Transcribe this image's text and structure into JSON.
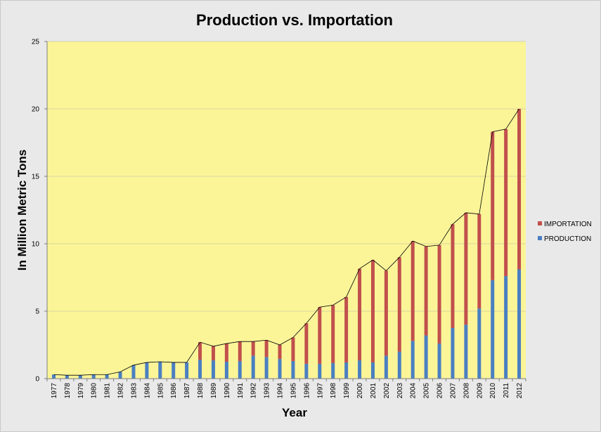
{
  "chart_data": {
    "type": "bar",
    "stacked": true,
    "title": "Production vs. Importation",
    "xlabel": "Year",
    "ylabel": "In Million Metric Tons",
    "ylim": [
      0,
      25
    ],
    "yticks": [
      0,
      5,
      10,
      15,
      20,
      25
    ],
    "grid": true,
    "legend_position": "right",
    "categories": [
      "1977",
      "1978",
      "1979",
      "1980",
      "1981",
      "1982",
      "1983",
      "1984",
      "1985",
      "1986",
      "1987",
      "1988",
      "1989",
      "1990",
      "1991",
      "1992",
      "1993",
      "1994",
      "1995",
      "1996",
      "1997",
      "1998",
      "1999",
      "2000",
      "2001",
      "2002",
      "2003",
      "2004",
      "2005",
      "2006",
      "2007",
      "2008",
      "2009",
      "2010",
      "2011",
      "2012"
    ],
    "series": [
      {
        "name": "PRODUCTION",
        "color": "#4a7fc1",
        "values": [
          0.3,
          0.25,
          0.25,
          0.3,
          0.3,
          0.5,
          1.0,
          1.2,
          1.25,
          1.2,
          1.2,
          1.4,
          1.35,
          1.25,
          1.3,
          1.7,
          1.6,
          1.45,
          1.3,
          1.1,
          1.1,
          1.15,
          1.2,
          1.35,
          1.2,
          1.7,
          2.0,
          2.8,
          3.2,
          2.6,
          3.75,
          4.0,
          5.2,
          7.3,
          7.6,
          8.1
        ]
      },
      {
        "name": "IMPORTATION",
        "color": "#c0504d",
        "values": [
          0,
          0,
          0,
          0,
          0,
          0,
          0,
          0,
          0,
          0,
          0,
          1.3,
          1.05,
          1.35,
          1.45,
          1.05,
          1.25,
          1.05,
          1.75,
          3.0,
          4.2,
          4.3,
          4.85,
          6.8,
          7.6,
          6.3,
          7.0,
          7.4,
          6.6,
          7.3,
          7.7,
          8.3,
          7.0,
          11.0,
          10.9,
          11.9
        ]
      }
    ]
  },
  "colors": {
    "plot_background": "#fbf598",
    "outer_background": "#e9e9e9",
    "gridline": "#b5b5a0",
    "total_line": "#000000"
  }
}
